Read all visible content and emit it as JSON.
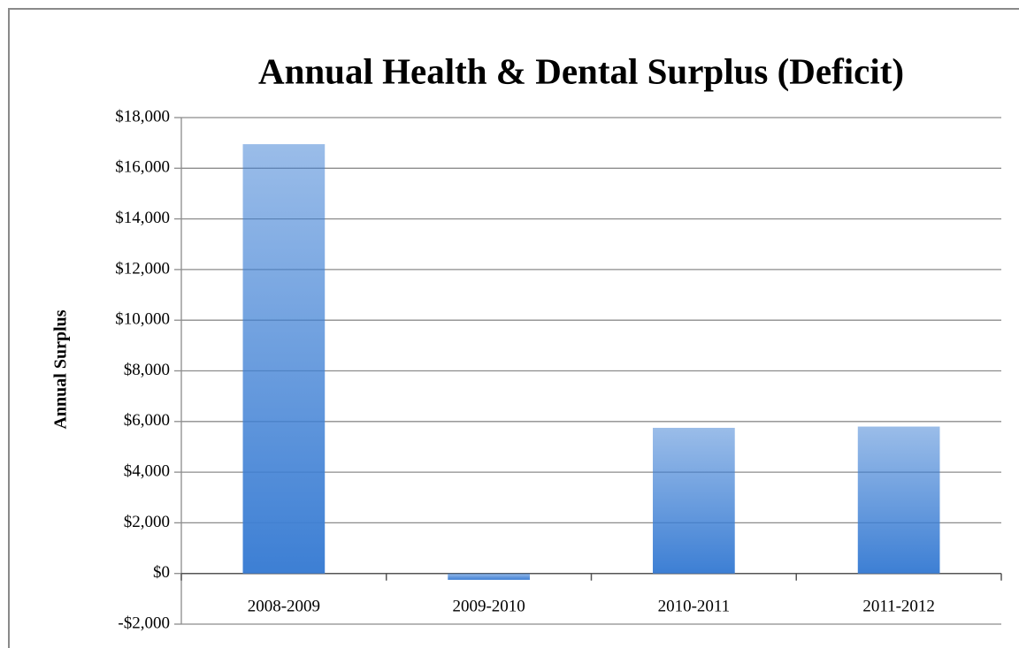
{
  "chart_data": {
    "type": "bar",
    "title": "Annual Health & Dental Surplus (Deficit)",
    "y_label": "Annual Surplus",
    "categories": [
      "2008-2009",
      "2009-2010",
      "2010-2011",
      "2011-2012"
    ],
    "values": [
      16950,
      -250,
      5750,
      5800
    ],
    "color": "#3d7fd4",
    "ylim": [
      -2000,
      18000
    ],
    "yticks": [
      {
        "value": -2000,
        "label": "-$2,000"
      },
      {
        "value": 0,
        "label": "$0"
      },
      {
        "value": 2000,
        "label": "$2,000"
      },
      {
        "value": 4000,
        "label": "$4,000"
      },
      {
        "value": 6000,
        "label": "$6,000"
      },
      {
        "value": 8000,
        "label": "$8,000"
      },
      {
        "value": 10000,
        "label": "$10,000"
      },
      {
        "value": 12000,
        "label": "$12,000"
      },
      {
        "value": 14000,
        "label": "$14,000"
      },
      {
        "value": 16000,
        "label": "$16,000"
      },
      {
        "value": 18000,
        "label": "$18,000"
      }
    ],
    "grid": true
  }
}
